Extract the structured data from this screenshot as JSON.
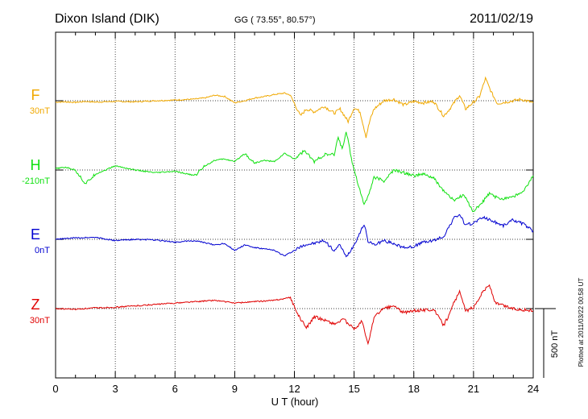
{
  "header": {
    "station": "Dixon Island (DIK)",
    "coords": "GG ( 73.55°,  80.57°)",
    "date": "2011/02/19"
  },
  "footer_note": "Plotted at 2011/03/22 00:58 UT",
  "scale_label": "500 nT",
  "colors": {
    "F": "#f0a800",
    "H": "#10e010",
    "E": "#0000d0",
    "Z": "#e00000",
    "axis": "#000000"
  },
  "chart_data": {
    "type": "line",
    "xlabel": "U T (hour)",
    "xlim": [
      0,
      24
    ],
    "x_ticks": [
      "0",
      "3",
      "6",
      "9",
      "12",
      "15",
      "18",
      "21",
      "24"
    ],
    "scale_bar_nT": 500,
    "series": [
      {
        "name": "F",
        "baseline": "30nT",
        "points": [
          [
            0,
            -10
          ],
          [
            0.5,
            -8
          ],
          [
            1,
            -12
          ],
          [
            1.5,
            -5
          ],
          [
            2,
            -10
          ],
          [
            3,
            -5
          ],
          [
            4,
            -8
          ],
          [
            5,
            0
          ],
          [
            6,
            5
          ],
          [
            7,
            12
          ],
          [
            7.5,
            20
          ],
          [
            8,
            40
          ],
          [
            8.5,
            30
          ],
          [
            9,
            -15
          ],
          [
            9.5,
            0
          ],
          [
            10,
            20
          ],
          [
            10.5,
            30
          ],
          [
            11,
            45
          ],
          [
            11.5,
            55
          ],
          [
            11.8,
            40
          ],
          [
            12,
            -20
          ],
          [
            12.3,
            -110
          ],
          [
            12.6,
            -60
          ],
          [
            13,
            -80
          ],
          [
            13.5,
            -40
          ],
          [
            14,
            -90
          ],
          [
            14.3,
            -60
          ],
          [
            14.7,
            -150
          ],
          [
            15,
            -50
          ],
          [
            15.3,
            -80
          ],
          [
            15.6,
            -260
          ],
          [
            15.8,
            -140
          ],
          [
            16,
            -60
          ],
          [
            16.5,
            0
          ],
          [
            17,
            10
          ],
          [
            17.5,
            -30
          ],
          [
            18,
            -5
          ],
          [
            18.5,
            -15
          ],
          [
            19,
            -5
          ],
          [
            19.5,
            -110
          ],
          [
            19.8,
            -60
          ],
          [
            20,
            -20
          ],
          [
            20.3,
            40
          ],
          [
            20.6,
            -60
          ],
          [
            21,
            -10
          ],
          [
            21.3,
            30
          ],
          [
            21.6,
            160
          ],
          [
            21.9,
            60
          ],
          [
            22.2,
            -20
          ],
          [
            22.8,
            -5
          ],
          [
            23.4,
            10
          ],
          [
            24,
            -15
          ]
        ]
      },
      {
        "name": "H",
        "baseline": "-210nT",
        "points": [
          [
            0,
            10
          ],
          [
            0.5,
            20
          ],
          [
            1,
            0
          ],
          [
            1.5,
            -100
          ],
          [
            2,
            -30
          ],
          [
            3,
            30
          ],
          [
            4,
            0
          ],
          [
            5,
            -20
          ],
          [
            6,
            -10
          ],
          [
            7,
            -40
          ],
          [
            7.5,
            30
          ],
          [
            8,
            70
          ],
          [
            8.5,
            80
          ],
          [
            9,
            60
          ],
          [
            9.5,
            120
          ],
          [
            10,
            50
          ],
          [
            10.5,
            70
          ],
          [
            11,
            60
          ],
          [
            11.5,
            120
          ],
          [
            12,
            80
          ],
          [
            12.5,
            140
          ],
          [
            13,
            60
          ],
          [
            13.5,
            110
          ],
          [
            14,
            110
          ],
          [
            14.2,
            240
          ],
          [
            14.4,
            150
          ],
          [
            14.6,
            280
          ],
          [
            14.9,
            60
          ],
          [
            15.2,
            -100
          ],
          [
            15.5,
            -250
          ],
          [
            15.8,
            -150
          ],
          [
            16,
            -50
          ],
          [
            16.5,
            -80
          ],
          [
            17,
            0
          ],
          [
            17.5,
            -20
          ],
          [
            18,
            -40
          ],
          [
            18.5,
            -30
          ],
          [
            19,
            -60
          ],
          [
            19.5,
            -150
          ],
          [
            20,
            -220
          ],
          [
            20.5,
            -180
          ],
          [
            21,
            -300
          ],
          [
            21.4,
            -240
          ],
          [
            21.8,
            -170
          ],
          [
            22.3,
            -210
          ],
          [
            23,
            -190
          ],
          [
            23.5,
            -160
          ],
          [
            24,
            -40
          ]
        ]
      },
      {
        "name": "E",
        "baseline": "0nT",
        "points": [
          [
            0,
            0
          ],
          [
            1,
            10
          ],
          [
            2,
            15
          ],
          [
            3,
            -10
          ],
          [
            4,
            0
          ],
          [
            5,
            -5
          ],
          [
            6,
            -20
          ],
          [
            7,
            -10
          ],
          [
            8,
            -40
          ],
          [
            8.5,
            -30
          ],
          [
            9,
            -80
          ],
          [
            9.5,
            -40
          ],
          [
            10,
            -60
          ],
          [
            11,
            -80
          ],
          [
            11.5,
            -120
          ],
          [
            12,
            -80
          ],
          [
            12.5,
            -40
          ],
          [
            13,
            -30
          ],
          [
            13.5,
            -10
          ],
          [
            14,
            -80
          ],
          [
            14.3,
            -40
          ],
          [
            14.6,
            -130
          ],
          [
            15,
            -40
          ],
          [
            15.3,
            50
          ],
          [
            15.5,
            110
          ],
          [
            15.7,
            -10
          ],
          [
            16,
            -40
          ],
          [
            16.5,
            -10
          ],
          [
            17,
            -30
          ],
          [
            17.5,
            -60
          ],
          [
            18,
            -50
          ],
          [
            18.5,
            -20
          ],
          [
            19,
            -10
          ],
          [
            19.5,
            20
          ],
          [
            20,
            150
          ],
          [
            20.3,
            180
          ],
          [
            20.6,
            100
          ],
          [
            21,
            120
          ],
          [
            21.5,
            160
          ],
          [
            22,
            130
          ],
          [
            22.5,
            100
          ],
          [
            23,
            140
          ],
          [
            23.5,
            110
          ],
          [
            24,
            60
          ]
        ]
      },
      {
        "name": "Z",
        "baseline": "30nT",
        "points": [
          [
            0,
            0
          ],
          [
            1,
            -5
          ],
          [
            2,
            5
          ],
          [
            3,
            10
          ],
          [
            4,
            20
          ],
          [
            5,
            30
          ],
          [
            6,
            40
          ],
          [
            7,
            50
          ],
          [
            8,
            60
          ],
          [
            9,
            40
          ],
          [
            10,
            50
          ],
          [
            11,
            60
          ],
          [
            11.8,
            80
          ],
          [
            12.2,
            -50
          ],
          [
            12.6,
            -140
          ],
          [
            13,
            -60
          ],
          [
            13.5,
            -80
          ],
          [
            14,
            -110
          ],
          [
            14.5,
            -80
          ],
          [
            15,
            -150
          ],
          [
            15.4,
            -90
          ],
          [
            15.7,
            -260
          ],
          [
            16,
            -60
          ],
          [
            16.5,
            0
          ],
          [
            17,
            20
          ],
          [
            17.5,
            -30
          ],
          [
            18,
            -15
          ],
          [
            19,
            -5
          ],
          [
            19.5,
            -120
          ],
          [
            19.8,
            -40
          ],
          [
            20,
            40
          ],
          [
            20.3,
            120
          ],
          [
            20.6,
            -20
          ],
          [
            21,
            10
          ],
          [
            21.5,
            130
          ],
          [
            21.8,
            170
          ],
          [
            22.1,
            40
          ],
          [
            23,
            0
          ],
          [
            24,
            -15
          ]
        ]
      }
    ]
  }
}
